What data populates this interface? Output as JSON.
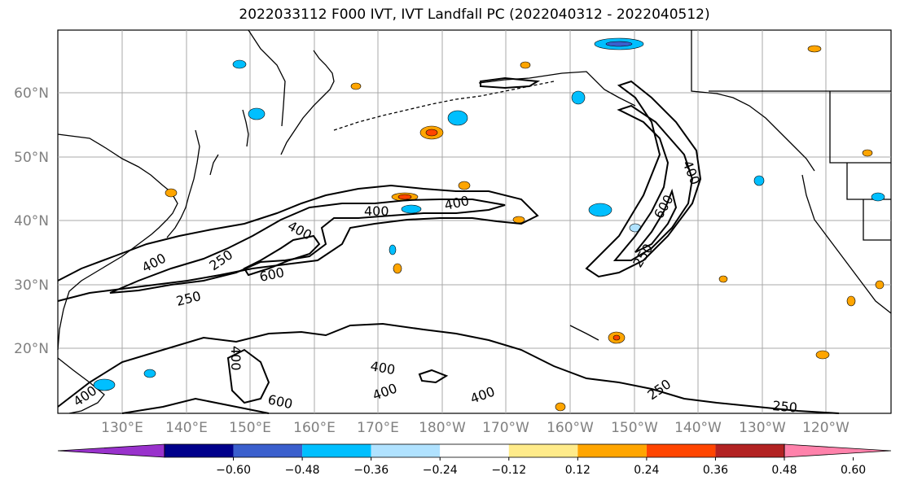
{
  "title": "2022033112 F000 IVT, IVT Landfall PC (2022040312 - 2022040512)",
  "lat_labels": [
    "60°N",
    "50°N",
    "40°N",
    "30°N",
    "20°N"
  ],
  "lon_labels": [
    "130°E",
    "140°E",
    "150°E",
    "160°E",
    "170°E",
    "180°W",
    "170°W",
    "160°W",
    "150°W",
    "140°W",
    "130°W",
    "120°W"
  ],
  "colorbar": {
    "tick_labels": [
      "−0.60",
      "−0.48",
      "−0.36",
      "−0.24",
      "−0.12",
      "0.12",
      "0.24",
      "0.36",
      "0.48",
      "0.60"
    ],
    "colors": [
      "#9932cc",
      "#00008b",
      "#3a5fcd",
      "#00bfff",
      "#b0e2ff",
      "#ffffff",
      "#ffeb8a",
      "#ffa500",
      "#ff4500",
      "#b22222",
      "#ff82ab"
    ]
  },
  "contour_labels": [
    "400",
    "400",
    "400",
    "400",
    "250",
    "600",
    "250",
    "400",
    "600",
    "250",
    "400",
    "600",
    "400",
    "400",
    "400",
    "400",
    "250",
    "250"
  ],
  "colors": {
    "land_outline": "#000000",
    "grid": "#a9a9a9"
  }
}
